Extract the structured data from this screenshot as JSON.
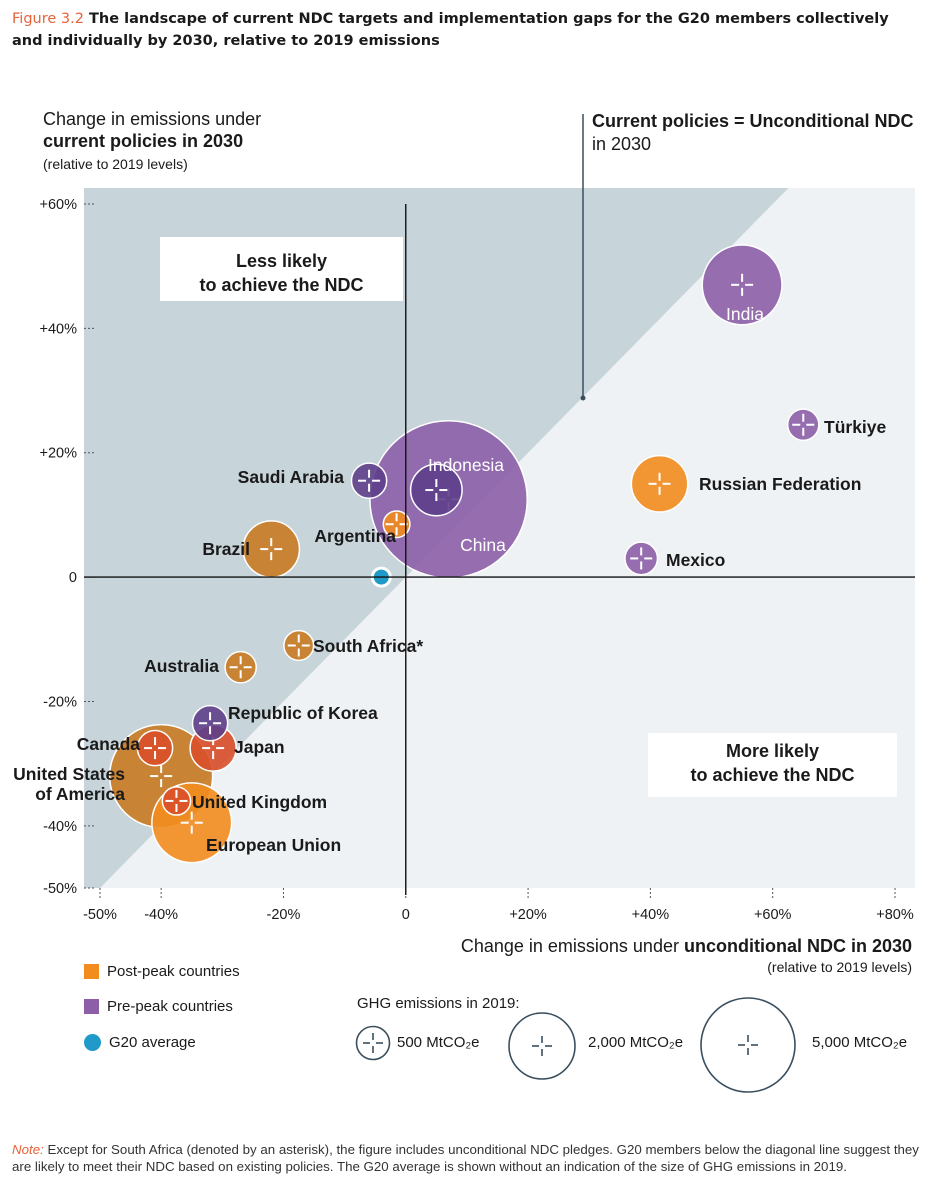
{
  "figure": {
    "number": "Figure 3.2",
    "title": "The landscape of current NDC targets and implementation gaps for the G20 members collectively and individually by 2030, relative to 2019 emissions"
  },
  "y_axis_title": {
    "line1": "Change in emissions under",
    "line2_bold": "current policies in 2030",
    "line3": "(relative to 2019 levels)"
  },
  "x_axis_title": {
    "plain": "Change in emissions under ",
    "bold": "unconditional NDC in 2030",
    "sub": "(relative to 2019 levels)"
  },
  "diagonal_annotation": {
    "bold": "Current policies = Unconditional NDC",
    "plain": "in 2030"
  },
  "region_labels": {
    "upper": [
      "Less likely",
      "to achieve the NDC"
    ],
    "lower": [
      "More likely",
      "to achieve the NDC"
    ]
  },
  "legend": {
    "post_peak": "Post-peak countries",
    "pre_peak": "Pre-peak countries",
    "g20": "G20 average",
    "size_title": "GHG emissions in 2019:",
    "size_500": "500 MtCO₂e",
    "size_2000": "2,000 MtCO₂e",
    "size_5000": "5,000 MtCO₂e"
  },
  "colors": {
    "post_peak": "#f28c1f",
    "post_peak_dark": "#d97b1a",
    "pre_peak": "#8c5fa8",
    "g20": "#1f9ac9",
    "shade": "#c7d4da",
    "red": "#d94f2a"
  },
  "note": {
    "tag": "Note:",
    "text": "Except for South Africa (denoted by an asterisk), the figure includes unconditional NDC pledges. G20 members below the diagonal line suggest they are likely to meet their NDC based on existing policies. The G20 average is shown without an indication of the size of GHG emissions in 2019."
  },
  "chart_data": {
    "type": "scatter",
    "title": "The landscape of current NDC targets and implementation gaps for the G20 members",
    "xlabel": "Change in emissions under unconditional NDC in 2030 (relative to 2019 levels)",
    "ylabel": "Change in emissions under current policies in 2030 (relative to 2019 levels)",
    "xlim": [
      -50,
      80
    ],
    "ylim": [
      -50,
      60
    ],
    "x_ticks": [
      "-50%",
      "-40%",
      "-20%",
      "0",
      "+20%",
      "+40%",
      "+60%",
      "+80%"
    ],
    "x_tick_values": [
      -50,
      -40,
      -20,
      0,
      20,
      40,
      60,
      80
    ],
    "y_ticks": [
      "+60%",
      "+40%",
      "+20%",
      "0",
      "-20%",
      "-40%",
      "-50%"
    ],
    "y_tick_values": [
      60,
      40,
      20,
      0,
      -20,
      -40,
      -50
    ],
    "points": [
      {
        "name": "China",
        "x": 7,
        "y": 12.5,
        "ghg": 14000,
        "group": "pre_peak",
        "label_pos": "inside"
      },
      {
        "name": "Indonesia",
        "x": 5,
        "y": 14,
        "ghg": 1500,
        "group": "pre_peak_dark",
        "label_pos": "above"
      },
      {
        "name": "Saudi Arabia",
        "x": -6,
        "y": 15.5,
        "ghg": 700,
        "group": "pre_peak_dark",
        "label_pos": "left"
      },
      {
        "name": "India",
        "x": 55,
        "y": 47,
        "ghg": 3600,
        "group": "pre_peak",
        "label_pos": "inside"
      },
      {
        "name": "Türkiye",
        "x": 65,
        "y": 24.5,
        "ghg": 550,
        "group": "pre_peak",
        "label_pos": "right"
      },
      {
        "name": "Russian Federation",
        "x": 41.5,
        "y": 15,
        "ghg": 1800,
        "group": "post_peak",
        "label_pos": "right"
      },
      {
        "name": "Mexico",
        "x": 38.5,
        "y": 3,
        "ghg": 600,
        "group": "pre_peak",
        "label_pos": "right"
      },
      {
        "name": "Argentina",
        "x": -1.5,
        "y": 8.5,
        "ghg": 400,
        "group": "post_peak",
        "label_pos": "left"
      },
      {
        "name": "Brazil",
        "x": -22,
        "y": 4.5,
        "ghg": 1800,
        "group": "post_peak_dark",
        "label_pos": "left"
      },
      {
        "name": "South Africa*",
        "x": -17.5,
        "y": -11,
        "ghg": 500,
        "group": "post_peak_dark",
        "label_pos": "right"
      },
      {
        "name": "Australia",
        "x": -27,
        "y": -14.5,
        "ghg": 550,
        "group": "post_peak_dark",
        "label_pos": "left"
      },
      {
        "name": "Republic of Korea",
        "x": -32,
        "y": -23.5,
        "ghg": 700,
        "group": "pre_peak_dark",
        "label_pos": "right"
      },
      {
        "name": "Canada",
        "x": -41,
        "y": -27.5,
        "ghg": 700,
        "group": "red",
        "label_pos": "left"
      },
      {
        "name": "Japan",
        "x": -31.5,
        "y": -27.5,
        "ghg": 1200,
        "group": "red",
        "label_pos": "right"
      },
      {
        "name": "United States of America",
        "x": -40,
        "y": -32,
        "ghg": 6000,
        "group": "post_peak_dark",
        "label_pos": "left"
      },
      {
        "name": "United Kingdom",
        "x": -37.5,
        "y": -36,
        "ghg": 450,
        "group": "red",
        "label_pos": "right"
      },
      {
        "name": "European Union",
        "x": -35,
        "y": -39.5,
        "ghg": 3600,
        "group": "post_peak",
        "label_pos": "below"
      },
      {
        "name": "G20 average",
        "x": -4,
        "y": 0,
        "ghg": null,
        "group": "g20",
        "label_pos": "none"
      }
    ]
  }
}
